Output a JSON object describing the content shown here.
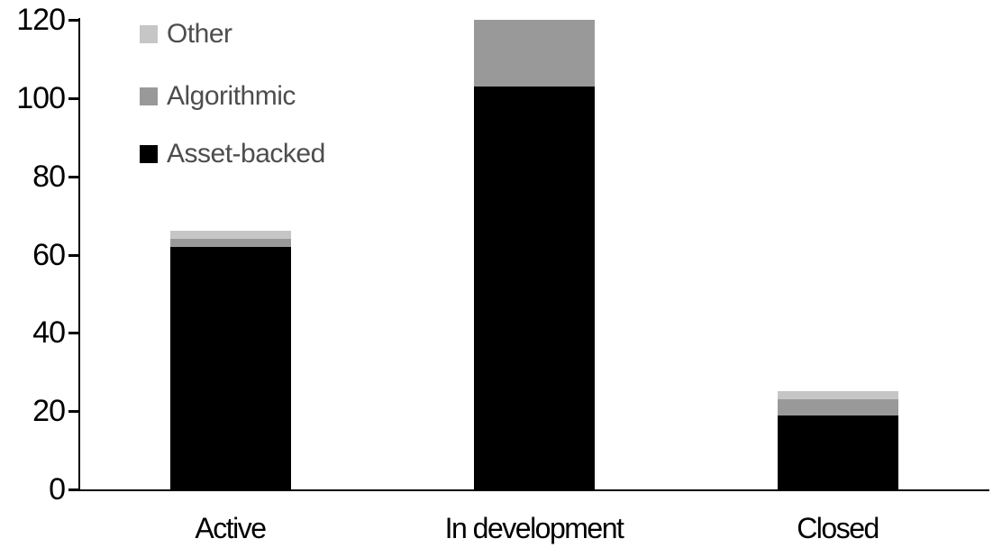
{
  "chart_data": {
    "type": "bar",
    "stacked": true,
    "categories": [
      "Active",
      "In development",
      "Closed"
    ],
    "series": [
      {
        "name": "Other",
        "color": "#c6c6c6",
        "values": [
          2,
          0,
          2
        ]
      },
      {
        "name": "Algorithmic",
        "color": "#999999",
        "values": [
          2,
          17,
          4
        ]
      },
      {
        "name": "Asset-backed",
        "color": "#000000",
        "values": [
          62,
          103,
          19
        ]
      }
    ],
    "stack_order_bottom_to_top": [
      "Asset-backed",
      "Algorithmic",
      "Other"
    ],
    "totals": [
      66,
      120,
      25
    ],
    "ylim": [
      0,
      120
    ],
    "yticks": [
      "0",
      "20",
      "40",
      "60",
      "80",
      "100",
      "120"
    ],
    "grid": false,
    "legend_position": "top-left",
    "axis_color": "#000000",
    "legend_text_color": "#4d4d4d"
  }
}
